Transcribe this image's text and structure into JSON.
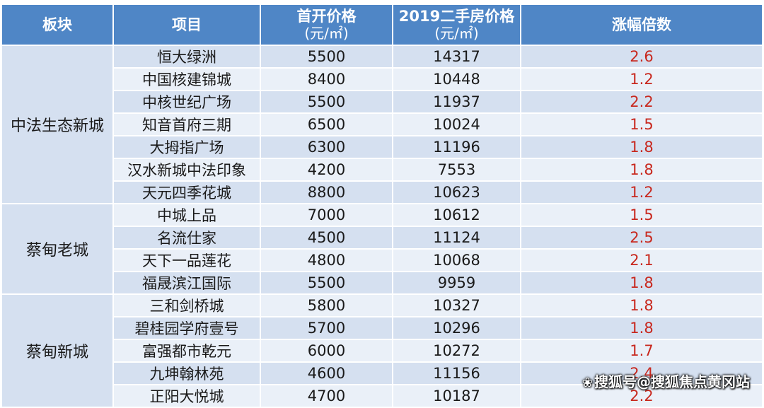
{
  "header": {
    "block": "板块",
    "project": "项目",
    "first_price_line1": "首开价格",
    "first_price_line2": "(元/㎡)",
    "resale_price_line1": "2019二手房价格",
    "resale_price_line2": "(元/㎡)",
    "ratio": "涨幅倍数"
  },
  "groups": [
    {
      "name": "中法生态新城",
      "rows": [
        {
          "project": "恒大绿洲",
          "first_price": "5500",
          "resale_price": "14317",
          "ratio": "2.6"
        },
        {
          "project": "中国核建锦城",
          "first_price": "8400",
          "resale_price": "10448",
          "ratio": "1.2"
        },
        {
          "project": "中核世纪广场",
          "first_price": "5500",
          "resale_price": "11937",
          "ratio": "2.2"
        },
        {
          "project": "知音首府三期",
          "first_price": "6500",
          "resale_price": "10024",
          "ratio": "1.5"
        },
        {
          "project": "大拇指广场",
          "first_price": "6300",
          "resale_price": "11196",
          "ratio": "1.8"
        },
        {
          "project": "汉水新城中法印象",
          "first_price": "4200",
          "resale_price": "7553",
          "ratio": "1.8"
        },
        {
          "project": "天元四季花城",
          "first_price": "8800",
          "resale_price": "10623",
          "ratio": "1.2"
        }
      ]
    },
    {
      "name": "蔡甸老城",
      "rows": [
        {
          "project": "中城上品",
          "first_price": "7000",
          "resale_price": "10612",
          "ratio": "1.5"
        },
        {
          "project": "名流仕家",
          "first_price": "4500",
          "resale_price": "11124",
          "ratio": "2.5"
        },
        {
          "project": "天下一品莲花",
          "first_price": "4800",
          "resale_price": "10068",
          "ratio": "2.1"
        },
        {
          "project": "福晟滨江国际",
          "first_price": "5500",
          "resale_price": "9959",
          "ratio": "1.8"
        }
      ]
    },
    {
      "name": "蔡甸新城",
      "rows": [
        {
          "project": "三和剑桥城",
          "first_price": "5800",
          "resale_price": "10327",
          "ratio": "1.8"
        },
        {
          "project": "碧桂园学府壹号",
          "first_price": "5700",
          "resale_price": "10296",
          "ratio": "1.8"
        },
        {
          "project": "富强都市乾元",
          "first_price": "6000",
          "resale_price": "10272",
          "ratio": "1.7"
        },
        {
          "project": "九坤翰林苑",
          "first_price": "4600",
          "resale_price": "11156",
          "ratio": "2.4"
        },
        {
          "project": "正阳大悦城",
          "first_price": "4700",
          "resale_price": "10187",
          "ratio": "2.2"
        }
      ]
    }
  ],
  "watermark": "搜狐号@搜狐焦点黄冈站",
  "colors": {
    "header_bg": "#4f86c6",
    "row_dark": "#d5e0f0",
    "row_light": "#eaf0f8",
    "ratio_text": "#c8281e"
  }
}
